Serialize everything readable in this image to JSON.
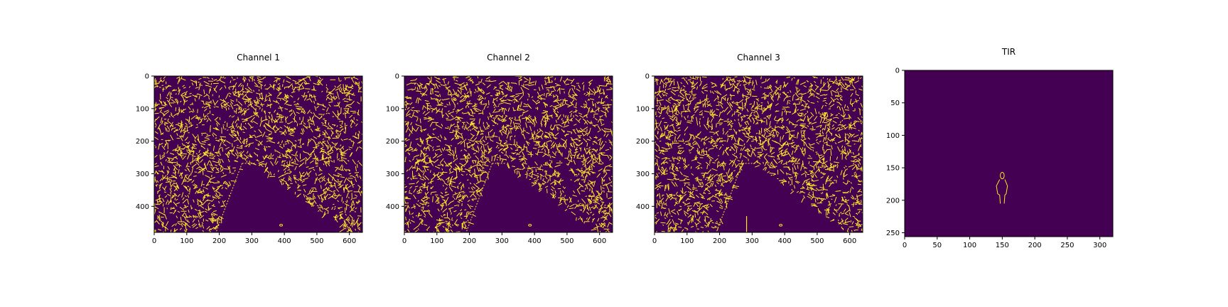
{
  "colors": {
    "background": "#440154",
    "edge": "#fde725",
    "axis": "#000000"
  },
  "chart_data": [
    {
      "type": "heatmap",
      "title": "Channel 1",
      "colormap": "viridis",
      "values": "binary edge map (0 / 1)",
      "xlim": [
        0,
        640
      ],
      "ylim": [
        480,
        0
      ],
      "xticks": [
        0,
        100,
        200,
        300,
        400,
        500,
        600
      ],
      "yticks": [
        0,
        100,
        200,
        300,
        400
      ],
      "road_region": [
        [
          270,
          268
        ],
        [
          310,
          268
        ],
        [
          590,
          480
        ],
        [
          190,
          480
        ]
      ],
      "small_marks": [
        [
          390,
          458
        ]
      ],
      "extra_segments": []
    },
    {
      "type": "heatmap",
      "title": "Channel 2",
      "colormap": "viridis",
      "values": "binary edge map (0 / 1)",
      "xlim": [
        0,
        640
      ],
      "ylim": [
        480,
        0
      ],
      "xticks": [
        0,
        100,
        200,
        300,
        400,
        500,
        600
      ],
      "yticks": [
        0,
        100,
        200,
        300,
        400
      ],
      "road_region": [
        [
          270,
          268
        ],
        [
          310,
          268
        ],
        [
          590,
          480
        ],
        [
          190,
          480
        ]
      ],
      "small_marks": [
        [
          386,
          458
        ]
      ],
      "extra_segments": []
    },
    {
      "type": "heatmap",
      "title": "Channel 3",
      "colormap": "viridis",
      "values": "binary edge map (0 / 1)",
      "xlim": [
        0,
        640
      ],
      "ylim": [
        480,
        0
      ],
      "xticks": [
        0,
        100,
        200,
        300,
        400,
        500,
        600
      ],
      "yticks": [
        0,
        100,
        200,
        300,
        400
      ],
      "road_region": [
        [
          270,
          268
        ],
        [
          310,
          268
        ],
        [
          590,
          480
        ],
        [
          190,
          480
        ]
      ],
      "small_marks": [
        [
          388,
          458
        ]
      ],
      "extra_segments": [
        [
          [
            283,
            430
          ],
          [
            283,
            480
          ]
        ]
      ]
    },
    {
      "type": "heatmap",
      "title": "TIR",
      "colormap": "viridis",
      "values": "binary edge map (0 / 1)",
      "xlim": [
        0,
        320
      ],
      "ylim": [
        256,
        0
      ],
      "xticks": [
        0,
        50,
        100,
        150,
        200,
        250,
        300
      ],
      "yticks": [
        0,
        50,
        100,
        150,
        200,
        250
      ],
      "person_outline": {
        "head": {
          "cx": 150,
          "cy": 162,
          "rx": 3,
          "ry": 5
        },
        "body": [
          [
            146,
            168
          ],
          [
            141,
            178
          ],
          [
            143,
            190
          ],
          [
            146,
            192
          ],
          [
            147,
            205
          ]
        ],
        "body_right": [
          [
            154,
            168
          ],
          [
            158,
            178
          ],
          [
            156,
            190
          ],
          [
            154,
            192
          ],
          [
            153,
            205
          ]
        ]
      }
    }
  ]
}
